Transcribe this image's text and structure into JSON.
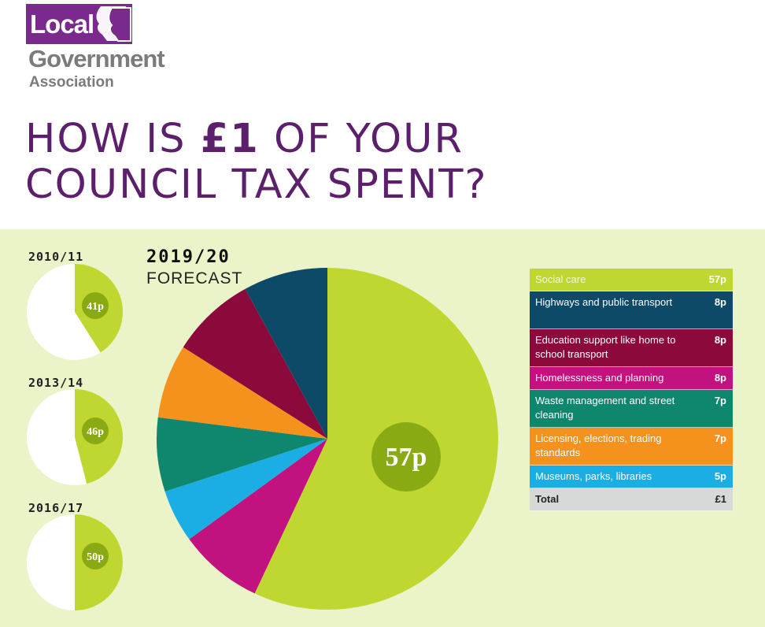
{
  "logo": {
    "line1": "Local",
    "line2": "Government",
    "line3": "Association"
  },
  "title": {
    "part1": "HOW IS ",
    "bold": "£1",
    "part2": " OF YOUR",
    "line2": "COUNCIL TAX SPENT?"
  },
  "colors": {
    "panel_bg": "#ebf3c8",
    "social_care": "#bfd730",
    "label_circle": "#8aaa14",
    "title_purple": "#5c1f6c",
    "logo_purple": "#7a2a8c"
  },
  "main_chart": {
    "year": "2019/20",
    "subtitle": "FORECAST",
    "center_label": "57p"
  },
  "small_charts": [
    {
      "year": "2010/11",
      "label": "41p",
      "value": 41
    },
    {
      "year": "2013/14",
      "label": "46p",
      "value": 46
    },
    {
      "year": "2016/17",
      "label": "50p",
      "value": 50
    }
  ],
  "legend": {
    "rows": [
      {
        "label": "Social care",
        "value": "57p",
        "color": "#bfd730"
      },
      {
        "label": "Highways and public transport",
        "value": "8p",
        "color": "#0c4a68"
      },
      {
        "label": "Education support like home to school transport",
        "value": "8p",
        "color": "#8b0a3b"
      },
      {
        "label": "Homelessness and planning",
        "value": "8p",
        "color": "#c2127f"
      },
      {
        "label": "Waste management and street cleaning",
        "value": "7p",
        "color": "#0e876e"
      },
      {
        "label": "Licensing, elections, trading standards",
        "value": "7p",
        "color": "#f5921e"
      },
      {
        "label": "Museums, parks, libraries",
        "value": "5p",
        "color": "#1aaee5"
      }
    ],
    "total": {
      "label": "Total",
      "value": "£1",
      "color": "#d7d8d8"
    }
  },
  "chart_data": {
    "type": "pie",
    "title": "2019/20 FORECAST",
    "unit": "p",
    "categories": [
      "Social care",
      "Highways and public transport",
      "Education support like home to school transport",
      "Homelessness and planning",
      "Waste management and street cleaning",
      "Licensing, elections, trading standards",
      "Museums, parks, libraries"
    ],
    "values": [
      57,
      8,
      8,
      8,
      7,
      7,
      5
    ],
    "colors": [
      "#bfd730",
      "#0c4a68",
      "#8b0a3b",
      "#c2127f",
      "#0e876e",
      "#f5921e",
      "#1aaee5"
    ],
    "pie_order": [
      0,
      3,
      6,
      4,
      5,
      2,
      1
    ],
    "small_multiples": [
      {
        "year": "2010/11",
        "series": "Social care",
        "value": 41
      },
      {
        "year": "2013/14",
        "series": "Social care",
        "value": 46
      },
      {
        "year": "2016/17",
        "series": "Social care",
        "value": 50
      }
    ]
  }
}
